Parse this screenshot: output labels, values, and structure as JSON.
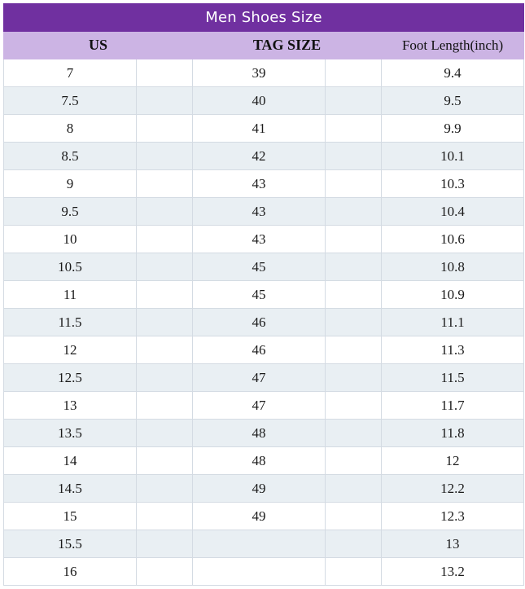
{
  "title": "Men Shoes Size",
  "headers": {
    "us": "US",
    "tag_size": "TAG SIZE",
    "foot_length": "Foot Length(inch)"
  },
  "colors": {
    "title_bg": "#7030a0",
    "header_bg": "#ccb4e4",
    "alt_row_bg": "#e9eff3"
  },
  "rows": [
    {
      "us": "7",
      "tag": "39",
      "foot": "9.4"
    },
    {
      "us": "7.5",
      "tag": "40",
      "foot": "9.5"
    },
    {
      "us": "8",
      "tag": "41",
      "foot": "9.9"
    },
    {
      "us": "8.5",
      "tag": "42",
      "foot": "10.1"
    },
    {
      "us": "9",
      "tag": "43",
      "foot": "10.3"
    },
    {
      "us": "9.5",
      "tag": "43",
      "foot": "10.4"
    },
    {
      "us": "10",
      "tag": "43",
      "foot": "10.6"
    },
    {
      "us": "10.5",
      "tag": "45",
      "foot": "10.8"
    },
    {
      "us": "11",
      "tag": "45",
      "foot": "10.9"
    },
    {
      "us": "11.5",
      "tag": "46",
      "foot": "11.1"
    },
    {
      "us": "12",
      "tag": "46",
      "foot": "11.3"
    },
    {
      "us": "12.5",
      "tag": "47",
      "foot": "11.5"
    },
    {
      "us": "13",
      "tag": "47",
      "foot": "11.7"
    },
    {
      "us": "13.5",
      "tag": "48",
      "foot": "11.8"
    },
    {
      "us": "14",
      "tag": "48",
      "foot": "12"
    },
    {
      "us": "14.5",
      "tag": "49",
      "foot": "12.2"
    },
    {
      "us": "15",
      "tag": "49",
      "foot": "12.3"
    },
    {
      "us": "15.5",
      "tag": "",
      "foot": "13"
    },
    {
      "us": "16",
      "tag": "",
      "foot": "13.2"
    }
  ]
}
